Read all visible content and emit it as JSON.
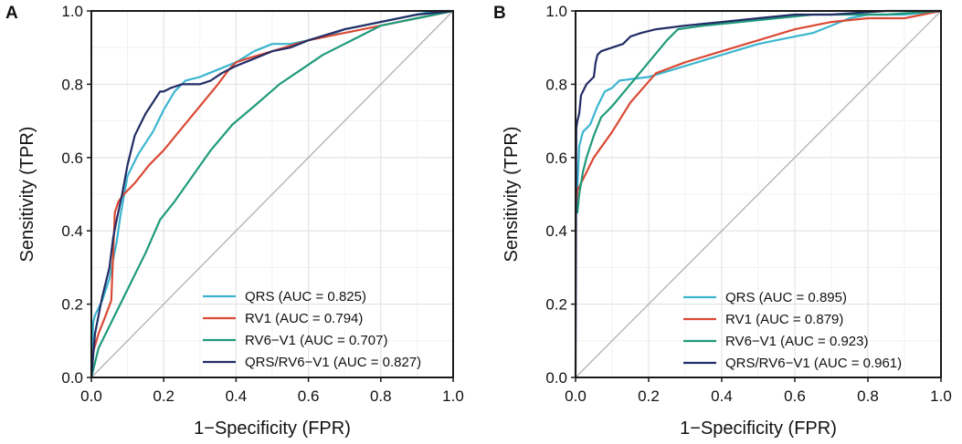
{
  "chart_data": [
    {
      "type": "line",
      "panel_label": "A",
      "xlabel": "1−Specificity (FPR)",
      "ylabel": "Sensitivity (TPR)",
      "xlim": [
        0,
        1
      ],
      "ylim": [
        0,
        1
      ],
      "xticks": [
        "0.0",
        "0.2",
        "0.4",
        "0.6",
        "0.8",
        "1.0"
      ],
      "yticks": [
        "0.0",
        "0.2",
        "0.4",
        "0.6",
        "0.8",
        "1.0"
      ],
      "grid": true,
      "legend_position": "bottom-right",
      "reference_line": {
        "color": "#b5b5b5",
        "x": [
          0,
          1
        ],
        "y": [
          0,
          1
        ]
      },
      "series": [
        {
          "name": "QRS (AUC = 0.825)",
          "color": "#3bb5cf",
          "x": [
            0,
            0.005,
            0.01,
            0.03,
            0.05,
            0.07,
            0.08,
            0.1,
            0.13,
            0.17,
            0.2,
            0.23,
            0.26,
            0.3,
            0.35,
            0.4,
            0.45,
            0.5,
            0.55,
            0.6,
            0.65,
            0.7,
            0.8,
            0.9,
            0.95,
            1.0
          ],
          "y": [
            0,
            0.15,
            0.17,
            0.21,
            0.27,
            0.37,
            0.44,
            0.55,
            0.61,
            0.67,
            0.73,
            0.78,
            0.81,
            0.82,
            0.84,
            0.86,
            0.89,
            0.91,
            0.91,
            0.92,
            0.93,
            0.95,
            0.97,
            0.99,
            1.0,
            1.0
          ]
        },
        {
          "name": "RV1 (AUC = 0.794)",
          "color": "#d94a35",
          "x": [
            0,
            0.005,
            0.02,
            0.04,
            0.055,
            0.065,
            0.075,
            0.09,
            0.12,
            0.16,
            0.2,
            0.25,
            0.3,
            0.35,
            0.38,
            0.4,
            0.43,
            0.5,
            0.6,
            0.7,
            0.8,
            0.9,
            0.95,
            1.0
          ],
          "y": [
            0,
            0.07,
            0.12,
            0.17,
            0.21,
            0.45,
            0.48,
            0.5,
            0.53,
            0.58,
            0.62,
            0.68,
            0.74,
            0.8,
            0.84,
            0.86,
            0.87,
            0.89,
            0.92,
            0.94,
            0.96,
            0.98,
            0.99,
            1.0
          ]
        },
        {
          "name": "RV6−V1 (AUC = 0.707)",
          "color": "#1e9a7a",
          "x": [
            0,
            0.02,
            0.05,
            0.1,
            0.15,
            0.19,
            0.23,
            0.28,
            0.33,
            0.39,
            0.45,
            0.52,
            0.58,
            0.64,
            0.7,
            0.76,
            0.8,
            0.85,
            0.9,
            0.95,
            1.0
          ],
          "y": [
            0,
            0.08,
            0.14,
            0.24,
            0.34,
            0.43,
            0.48,
            0.55,
            0.62,
            0.69,
            0.74,
            0.8,
            0.84,
            0.88,
            0.91,
            0.94,
            0.96,
            0.97,
            0.98,
            0.99,
            1.0
          ]
        },
        {
          "name": "QRS/RV6−V1 (AUC = 0.827)",
          "color": "#232d66",
          "x": [
            0,
            0.01,
            0.03,
            0.05,
            0.06,
            0.07,
            0.085,
            0.1,
            0.12,
            0.14,
            0.15,
            0.17,
            0.19,
            0.2,
            0.22,
            0.25,
            0.28,
            0.3,
            0.33,
            0.36,
            0.4,
            0.45,
            0.5,
            0.55,
            0.6,
            0.7,
            0.8,
            0.9,
            1.0
          ],
          "y": [
            0,
            0.12,
            0.22,
            0.3,
            0.38,
            0.43,
            0.5,
            0.58,
            0.66,
            0.7,
            0.72,
            0.75,
            0.78,
            0.78,
            0.79,
            0.8,
            0.8,
            0.8,
            0.81,
            0.83,
            0.85,
            0.87,
            0.89,
            0.9,
            0.92,
            0.95,
            0.97,
            0.99,
            1.0
          ]
        }
      ]
    },
    {
      "type": "line",
      "panel_label": "B",
      "xlabel": "1−Specificity (FPR)",
      "ylabel": "Sensitivity (TPR)",
      "xlim": [
        0,
        1
      ],
      "ylim": [
        0,
        1
      ],
      "xticks": [
        "0.0",
        "0.2",
        "0.4",
        "0.6",
        "0.8",
        "1.0"
      ],
      "yticks": [
        "0.0",
        "0.2",
        "0.4",
        "0.6",
        "0.8",
        "1.0"
      ],
      "grid": true,
      "legend_position": "bottom-right",
      "reference_line": {
        "color": "#b5b5b5",
        "x": [
          0,
          1
        ],
        "y": [
          0,
          1
        ]
      },
      "series": [
        {
          "name": "QRS (AUC = 0.895)",
          "color": "#3bb5cf",
          "x": [
            0,
            0.005,
            0.01,
            0.02,
            0.04,
            0.06,
            0.08,
            0.1,
            0.12,
            0.2,
            0.3,
            0.4,
            0.5,
            0.6,
            0.65,
            0.7,
            0.75,
            0.8,
            0.9,
            1.0
          ],
          "y": [
            0.45,
            0.52,
            0.63,
            0.67,
            0.69,
            0.74,
            0.78,
            0.79,
            0.81,
            0.82,
            0.85,
            0.88,
            0.91,
            0.93,
            0.94,
            0.96,
            0.98,
            0.99,
            0.99,
            1.0
          ]
        },
        {
          "name": "RV1 (AUC = 0.879)",
          "color": "#d94a35",
          "x": [
            0,
            0.005,
            0.02,
            0.05,
            0.1,
            0.15,
            0.22,
            0.3,
            0.4,
            0.5,
            0.6,
            0.7,
            0.8,
            0.9,
            0.95,
            1.0
          ],
          "y": [
            0.45,
            0.51,
            0.54,
            0.6,
            0.67,
            0.75,
            0.83,
            0.86,
            0.89,
            0.92,
            0.95,
            0.97,
            0.98,
            0.98,
            0.99,
            1.0
          ]
        },
        {
          "name": "RV6−V1 (AUC = 0.923)",
          "color": "#1e9a7a",
          "x": [
            0,
            0.005,
            0.01,
            0.02,
            0.03,
            0.05,
            0.07,
            0.1,
            0.15,
            0.2,
            0.25,
            0.28,
            0.35,
            0.45,
            0.55,
            0.65,
            0.75,
            0.85,
            1.0
          ],
          "y": [
            0.45,
            0.45,
            0.5,
            0.56,
            0.6,
            0.66,
            0.71,
            0.74,
            0.8,
            0.86,
            0.92,
            0.95,
            0.96,
            0.97,
            0.98,
            0.99,
            0.99,
            0.99,
            1.0
          ]
        },
        {
          "name": "QRS/RV6−V1 (AUC = 0.961)",
          "color": "#232d66",
          "x": [
            0,
            0.002,
            0.005,
            0.01,
            0.015,
            0.02,
            0.03,
            0.04,
            0.05,
            0.055,
            0.06,
            0.07,
            0.1,
            0.13,
            0.15,
            0.18,
            0.22,
            0.3,
            0.4,
            0.5,
            0.6,
            0.7,
            0.85,
            1.0
          ],
          "y": [
            0,
            0.68,
            0.7,
            0.72,
            0.77,
            0.78,
            0.8,
            0.81,
            0.82,
            0.86,
            0.88,
            0.89,
            0.9,
            0.91,
            0.93,
            0.94,
            0.95,
            0.96,
            0.97,
            0.98,
            0.99,
            0.99,
            1.0,
            1.0
          ]
        }
      ]
    }
  ]
}
